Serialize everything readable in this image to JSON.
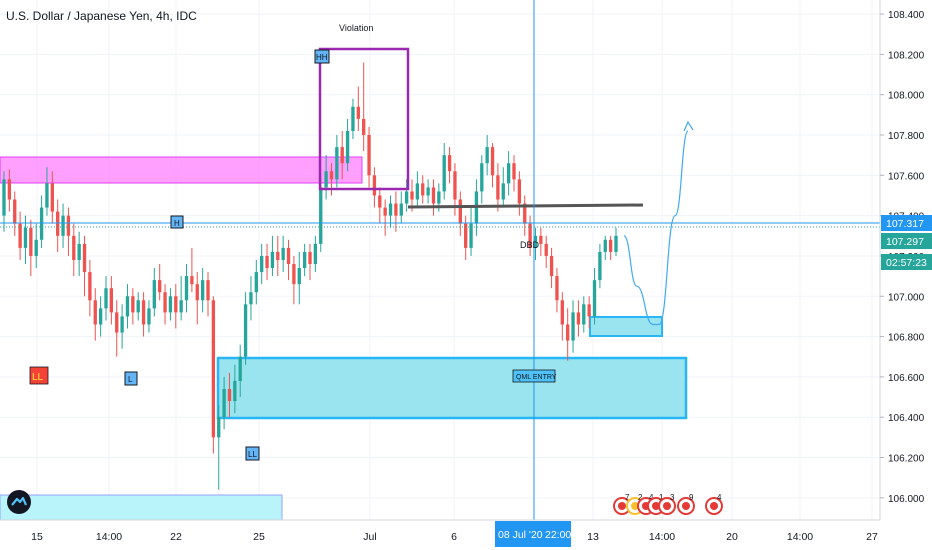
{
  "chart_title": "U.S. Dollar / Japanese Yen, 4h, IDC",
  "chart_data": {
    "type": "candlestick",
    "symbol": "U.S. Dollar / Japanese Yen",
    "interval": "4h",
    "source": "IDC",
    "ylim": [
      105.89,
      108.44
    ],
    "y_ticks": [
      "108.400",
      "108.200",
      "108.000",
      "107.800",
      "107.600",
      "107.400",
      "107.200",
      "107.000",
      "106.800",
      "106.600",
      "106.400",
      "106.200",
      "106.000"
    ],
    "x_ticks": [
      "15",
      "14:00",
      "22",
      "25",
      "Jul",
      "6",
      "13",
      "14:00",
      "20",
      "14:00",
      "27"
    ],
    "price_labels": [
      {
        "text": "107.317",
        "value": 107.317,
        "color": "#2196f3"
      },
      {
        "text": "107.297",
        "value": 107.297,
        "color": "#26a69a"
      },
      {
        "text": "02:57:23",
        "value": 107.23,
        "color": "#26a69a"
      }
    ],
    "crosshair": {
      "date_label": "08 Jul '20",
      "time_label": "22:00"
    },
    "candles": [
      [
        107.4,
        107.58,
        107.62,
        107.32
      ],
      [
        107.58,
        107.48,
        107.63,
        107.42
      ],
      [
        107.48,
        107.36,
        107.52,
        107.3
      ],
      [
        107.36,
        107.24,
        107.42,
        107.18
      ],
      [
        107.24,
        107.34,
        107.4,
        107.16
      ],
      [
        107.34,
        107.2,
        107.38,
        107.1
      ],
      [
        107.2,
        107.28,
        107.36,
        107.14
      ],
      [
        107.28,
        107.44,
        107.5,
        107.24
      ],
      [
        107.44,
        107.56,
        107.64,
        107.4
      ],
      [
        107.56,
        107.42,
        107.62,
        107.36
      ],
      [
        107.42,
        107.3,
        107.48,
        107.22
      ],
      [
        107.3,
        107.4,
        107.46,
        107.24
      ],
      [
        107.4,
        107.3,
        107.44,
        107.2
      ],
      [
        107.3,
        107.18,
        107.36,
        107.1
      ],
      [
        107.18,
        107.26,
        107.32,
        107.1
      ],
      [
        107.26,
        107.12,
        107.3,
        107.0
      ],
      [
        107.12,
        106.98,
        107.18,
        106.9
      ],
      [
        106.98,
        106.86,
        107.04,
        106.78
      ],
      [
        106.86,
        106.94,
        107.0,
        106.8
      ],
      [
        106.94,
        107.04,
        107.1,
        106.88
      ],
      [
        107.04,
        106.92,
        107.1,
        106.86
      ],
      [
        106.92,
        106.82,
        106.98,
        106.7
      ],
      [
        106.82,
        106.9,
        106.96,
        106.74
      ],
      [
        106.9,
        107.0,
        107.06,
        106.84
      ],
      [
        107.0,
        106.92,
        107.04,
        106.86
      ],
      [
        106.92,
        106.98,
        107.02,
        106.88
      ],
      [
        106.98,
        106.86,
        107.02,
        106.8
      ],
      [
        106.86,
        106.94,
        106.98,
        106.82
      ],
      [
        106.94,
        107.08,
        107.14,
        106.9
      ],
      [
        107.08,
        107.02,
        107.16,
        106.98
      ],
      [
        107.02,
        106.92,
        107.06,
        106.86
      ],
      [
        106.92,
        107.0,
        107.04,
        106.88
      ],
      [
        107.0,
        106.92,
        107.06,
        106.84
      ],
      [
        106.92,
        106.98,
        107.1,
        106.88
      ],
      [
        106.98,
        107.1,
        107.16,
        106.92
      ],
      [
        107.1,
        107.06,
        107.24,
        107.02
      ],
      [
        107.06,
        106.98,
        107.12,
        106.86
      ],
      [
        106.98,
        107.08,
        107.14,
        106.92
      ],
      [
        107.08,
        106.98,
        107.12,
        106.9
      ],
      [
        106.98,
        106.3,
        107.0,
        106.22
      ],
      [
        106.3,
        106.4,
        106.46,
        106.04
      ],
      [
        106.4,
        106.54,
        106.6,
        106.34
      ],
      [
        106.54,
        106.48,
        106.62,
        106.4
      ],
      [
        106.48,
        106.58,
        106.66,
        106.42
      ],
      [
        106.58,
        106.7,
        106.76,
        106.5
      ],
      [
        106.7,
        106.96,
        107.02,
        106.66
      ],
      [
        106.96,
        107.02,
        107.1,
        106.88
      ],
      [
        107.02,
        107.12,
        107.18,
        106.96
      ],
      [
        107.12,
        107.2,
        107.26,
        107.06
      ],
      [
        107.2,
        107.14,
        107.26,
        107.08
      ],
      [
        107.14,
        107.22,
        107.3,
        107.1
      ],
      [
        107.22,
        107.18,
        107.3,
        107.1
      ],
      [
        107.18,
        107.24,
        107.3,
        107.12
      ],
      [
        107.24,
        107.16,
        107.28,
        107.08
      ],
      [
        107.16,
        107.06,
        107.2,
        106.96
      ],
      [
        107.06,
        107.14,
        107.22,
        106.96
      ],
      [
        107.14,
        107.22,
        107.26,
        107.1
      ],
      [
        107.22,
        107.16,
        107.26,
        107.08
      ],
      [
        107.16,
        107.26,
        107.3,
        107.12
      ],
      [
        107.26,
        107.54,
        107.6,
        107.22
      ],
      [
        107.54,
        107.62,
        107.7,
        107.48
      ],
      [
        107.62,
        107.58,
        107.66,
        107.5
      ],
      [
        107.58,
        107.74,
        107.8,
        107.54
      ],
      [
        107.74,
        107.66,
        107.82,
        107.58
      ],
      [
        107.66,
        107.82,
        107.88,
        107.62
      ],
      [
        107.82,
        107.94,
        107.98,
        107.78
      ],
      [
        107.94,
        107.88,
        108.04,
        107.82
      ],
      [
        107.88,
        107.8,
        108.16,
        107.72
      ],
      [
        107.8,
        107.6,
        107.84,
        107.54
      ],
      [
        107.6,
        107.5,
        107.64,
        107.44
      ],
      [
        107.5,
        107.44,
        107.54,
        107.36
      ],
      [
        107.44,
        107.4,
        107.48,
        107.3
      ],
      [
        107.4,
        107.46,
        107.5,
        107.34
      ],
      [
        107.46,
        107.4,
        107.52,
        107.32
      ],
      [
        107.4,
        107.46,
        107.52,
        107.36
      ],
      [
        107.46,
        107.52,
        107.58,
        107.42
      ],
      [
        107.52,
        107.48,
        107.58,
        107.42
      ],
      [
        107.48,
        107.56,
        107.62,
        107.44
      ],
      [
        107.56,
        107.5,
        107.6,
        107.46
      ],
      [
        107.5,
        107.54,
        107.58,
        107.46
      ],
      [
        107.54,
        107.46,
        107.58,
        107.4
      ],
      [
        107.46,
        107.52,
        107.56,
        107.42
      ],
      [
        107.52,
        107.7,
        107.76,
        107.48
      ],
      [
        107.7,
        107.62,
        107.74,
        107.56
      ],
      [
        107.62,
        107.48,
        107.66,
        107.4
      ],
      [
        107.48,
        107.36,
        107.52,
        107.3
      ],
      [
        107.36,
        107.24,
        107.4,
        107.18
      ],
      [
        107.24,
        107.36,
        107.44,
        107.2
      ],
      [
        107.36,
        107.52,
        107.58,
        107.3
      ],
      [
        107.52,
        107.66,
        107.7,
        107.46
      ],
      [
        107.66,
        107.74,
        107.8,
        107.6
      ],
      [
        107.74,
        107.6,
        107.76,
        107.54
      ],
      [
        107.6,
        107.48,
        107.66,
        107.42
      ],
      [
        107.48,
        107.56,
        107.64,
        107.44
      ],
      [
        107.56,
        107.66,
        107.72,
        107.5
      ],
      [
        107.66,
        107.58,
        107.7,
        107.52
      ],
      [
        107.58,
        107.46,
        107.62,
        107.4
      ],
      [
        107.46,
        107.36,
        107.5,
        107.3
      ],
      [
        107.36,
        107.24,
        107.4,
        107.2
      ],
      [
        107.24,
        107.3,
        107.34,
        107.18
      ],
      [
        107.3,
        107.26,
        107.34,
        107.2
      ],
      [
        107.26,
        107.2,
        107.3,
        107.14
      ],
      [
        107.2,
        107.1,
        107.24,
        107.04
      ],
      [
        107.1,
        106.98,
        107.14,
        106.92
      ],
      [
        106.98,
        106.86,
        107.02,
        106.78
      ],
      [
        106.86,
        106.78,
        106.94,
        106.68
      ],
      [
        106.78,
        106.92,
        106.98,
        106.72
      ],
      [
        106.92,
        106.86,
        106.98,
        106.8
      ],
      [
        106.86,
        106.96,
        107.0,
        106.82
      ],
      [
        106.96,
        106.9,
        107.0,
        106.84
      ],
      [
        106.9,
        107.08,
        107.14,
        106.86
      ],
      [
        107.08,
        107.22,
        107.26,
        107.04
      ],
      [
        107.22,
        107.28,
        107.3,
        107.18
      ],
      [
        107.28,
        107.22,
        107.3,
        107.18
      ],
      [
        107.22,
        107.3,
        107.34,
        107.2
      ]
    ],
    "forecast_path": [
      [
        107.3,
        0.0
      ],
      [
        107.05,
        0.2
      ],
      [
        106.86,
        0.45
      ],
      [
        106.86,
        0.55
      ],
      [
        107.4,
        0.8
      ],
      [
        107.82,
        1.0
      ]
    ]
  },
  "annotations": {
    "violation": "Violation",
    "hh": "HH",
    "h": "H",
    "dbd": "DBD",
    "qml_entry": "QML ENTRY",
    "ll_red": "LL",
    "l_a": "L",
    "ll_b": "LL",
    "events": [
      "7",
      "2",
      "4",
      "1",
      "3",
      "9",
      "4"
    ]
  },
  "colors": {
    "up": "#26a69a",
    "down": "#ef5350",
    "violation_box": "#9c27b0",
    "supply_zone": "#ff80ff",
    "demand_zone": "#9ae4ef",
    "demand_border": "#29b6f6",
    "crosshair": "#2196f3",
    "resistance_line": "#555555"
  }
}
